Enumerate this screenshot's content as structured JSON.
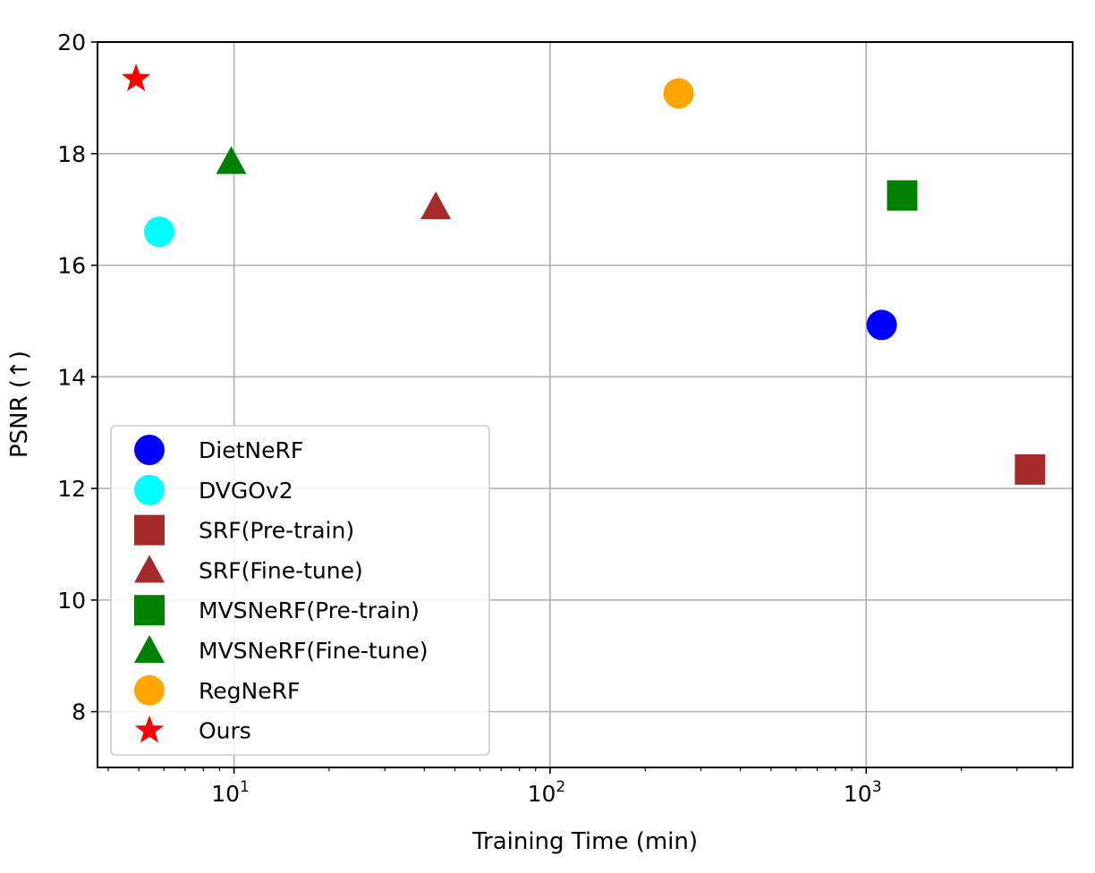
{
  "chart_data": {
    "type": "scatter",
    "xlabel": "Training Time (min)",
    "ylabel": "PSNR (↑)",
    "xscale": "log",
    "xlim": [
      3.7,
      4500
    ],
    "ylim": [
      7,
      20
    ],
    "grid": true,
    "legend_position": "lower-left",
    "x_ticks": [
      {
        "value": 10,
        "base": "10",
        "exp": "1"
      },
      {
        "value": 100,
        "base": "10",
        "exp": "2"
      },
      {
        "value": 1000,
        "base": "10",
        "exp": "3"
      }
    ],
    "y_ticks": [
      {
        "value": 8,
        "label": "8"
      },
      {
        "value": 10,
        "label": "10"
      },
      {
        "value": 12,
        "label": "12"
      },
      {
        "value": 14,
        "label": "14"
      },
      {
        "value": 16,
        "label": "16"
      },
      {
        "value": 18,
        "label": "18"
      },
      {
        "value": 20,
        "label": "20"
      }
    ],
    "series": [
      {
        "name": "DietNeRF",
        "marker": "circle",
        "color": "#0000ff",
        "x": 1120,
        "y": 14.93
      },
      {
        "name": "DVGOv2",
        "marker": "circle",
        "color": "#00ffff",
        "x": 5.8,
        "y": 16.6
      },
      {
        "name": "SRF(Pre-train)",
        "marker": "square",
        "color": "#a52a2a",
        "x": 3300,
        "y": 12.34
      },
      {
        "name": "SRF(Fine-tune)",
        "marker": "triangle",
        "color": "#a52a2a",
        "x": 43.5,
        "y": 17.05
      },
      {
        "name": "MVSNeRF(Pre-train)",
        "marker": "square",
        "color": "#008000",
        "x": 1300,
        "y": 17.25
      },
      {
        "name": "MVSNeRF(Fine-tune)",
        "marker": "triangle",
        "color": "#008000",
        "x": 9.8,
        "y": 17.86
      },
      {
        "name": "RegNeRF",
        "marker": "circle",
        "color": "#ffa500",
        "x": 255,
        "y": 19.08
      },
      {
        "name": "Ours",
        "marker": "star",
        "color": "#ff0000",
        "x": 4.9,
        "y": 19.34
      }
    ]
  }
}
